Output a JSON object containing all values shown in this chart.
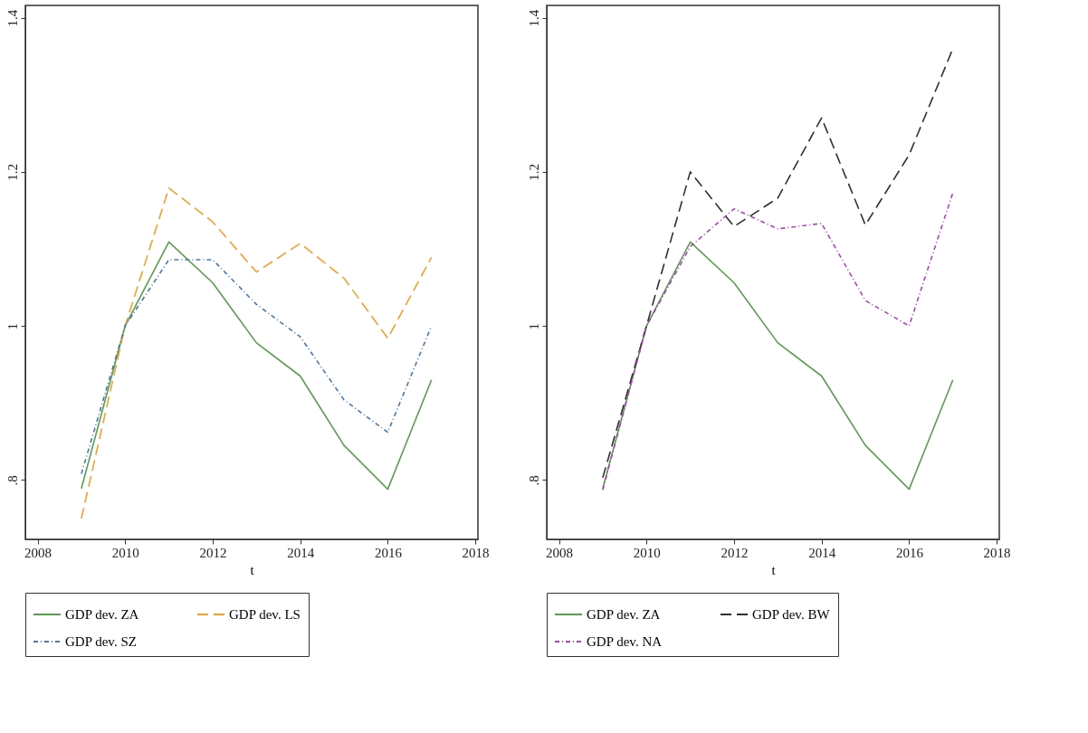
{
  "chart_data": [
    {
      "type": "line",
      "xlabel": "t",
      "x": [
        2009,
        2010,
        2011,
        2012,
        2013,
        2014,
        2015,
        2016,
        2017
      ],
      "xlim": [
        2007.72,
        2018.06
      ],
      "xticks": [
        2008,
        2010,
        2012,
        2014,
        2016,
        2018
      ],
      "ylim": [
        0.723,
        1.416
      ],
      "yticks": [
        {
          "value": 0.8,
          "label": ".8"
        },
        1,
        1.2,
        1.4
      ],
      "grid": false,
      "legend": "bottom",
      "marker": "none",
      "series": [
        {
          "name": "GDP dev. ZA",
          "color": "#5a9e4f",
          "line_style": "solid",
          "values": [
            0.789,
            1.0,
            1.109,
            1.056,
            0.978,
            0.935,
            0.845,
            0.788,
            0.93
          ]
        },
        {
          "name": "GDP dev. LS",
          "color": "#f0a030",
          "line_style": "dashed",
          "values": [
            0.75,
            1.0,
            1.179,
            1.135,
            1.07,
            1.107,
            1.062,
            0.984,
            1.089
          ]
        },
        {
          "name": "GDP dev. SZ",
          "color": "#4a78b0",
          "line_style": "dotted",
          "values": [
            0.808,
            1.0,
            1.086,
            1.086,
            1.028,
            0.986,
            0.904,
            0.862,
            1.0
          ]
        }
      ]
    },
    {
      "type": "line",
      "xlabel": "t",
      "x": [
        2009,
        2010,
        2011,
        2012,
        2013,
        2014,
        2015,
        2016,
        2017
      ],
      "xlim": [
        2007.72,
        2018.06
      ],
      "xticks": [
        2008,
        2010,
        2012,
        2014,
        2016,
        2018
      ],
      "ylim": [
        0.723,
        1.416
      ],
      "yticks": [
        {
          "value": 0.8,
          "label": ".8"
        },
        1,
        1.2,
        1.4
      ],
      "grid": false,
      "legend": "bottom",
      "marker": "none",
      "series": [
        {
          "name": "GDP dev. ZA",
          "color": "#5a9e4f",
          "line_style": "solid",
          "values": [
            0.789,
            1.0,
            1.109,
            1.056,
            0.978,
            0.935,
            0.845,
            0.788,
            0.93
          ]
        },
        {
          "name": "GDP dev. BW",
          "color": "#303030",
          "line_style": "dashed",
          "values": [
            0.803,
            1.0,
            1.2,
            1.129,
            1.166,
            1.27,
            1.131,
            1.222,
            1.36
          ]
        },
        {
          "name": "GDP dev. NA",
          "color": "#b040c0",
          "line_style": "dotted",
          "values": [
            0.787,
            1.0,
            1.103,
            1.152,
            1.126,
            1.133,
            1.033,
            1.0,
            1.173
          ]
        }
      ]
    }
  ]
}
